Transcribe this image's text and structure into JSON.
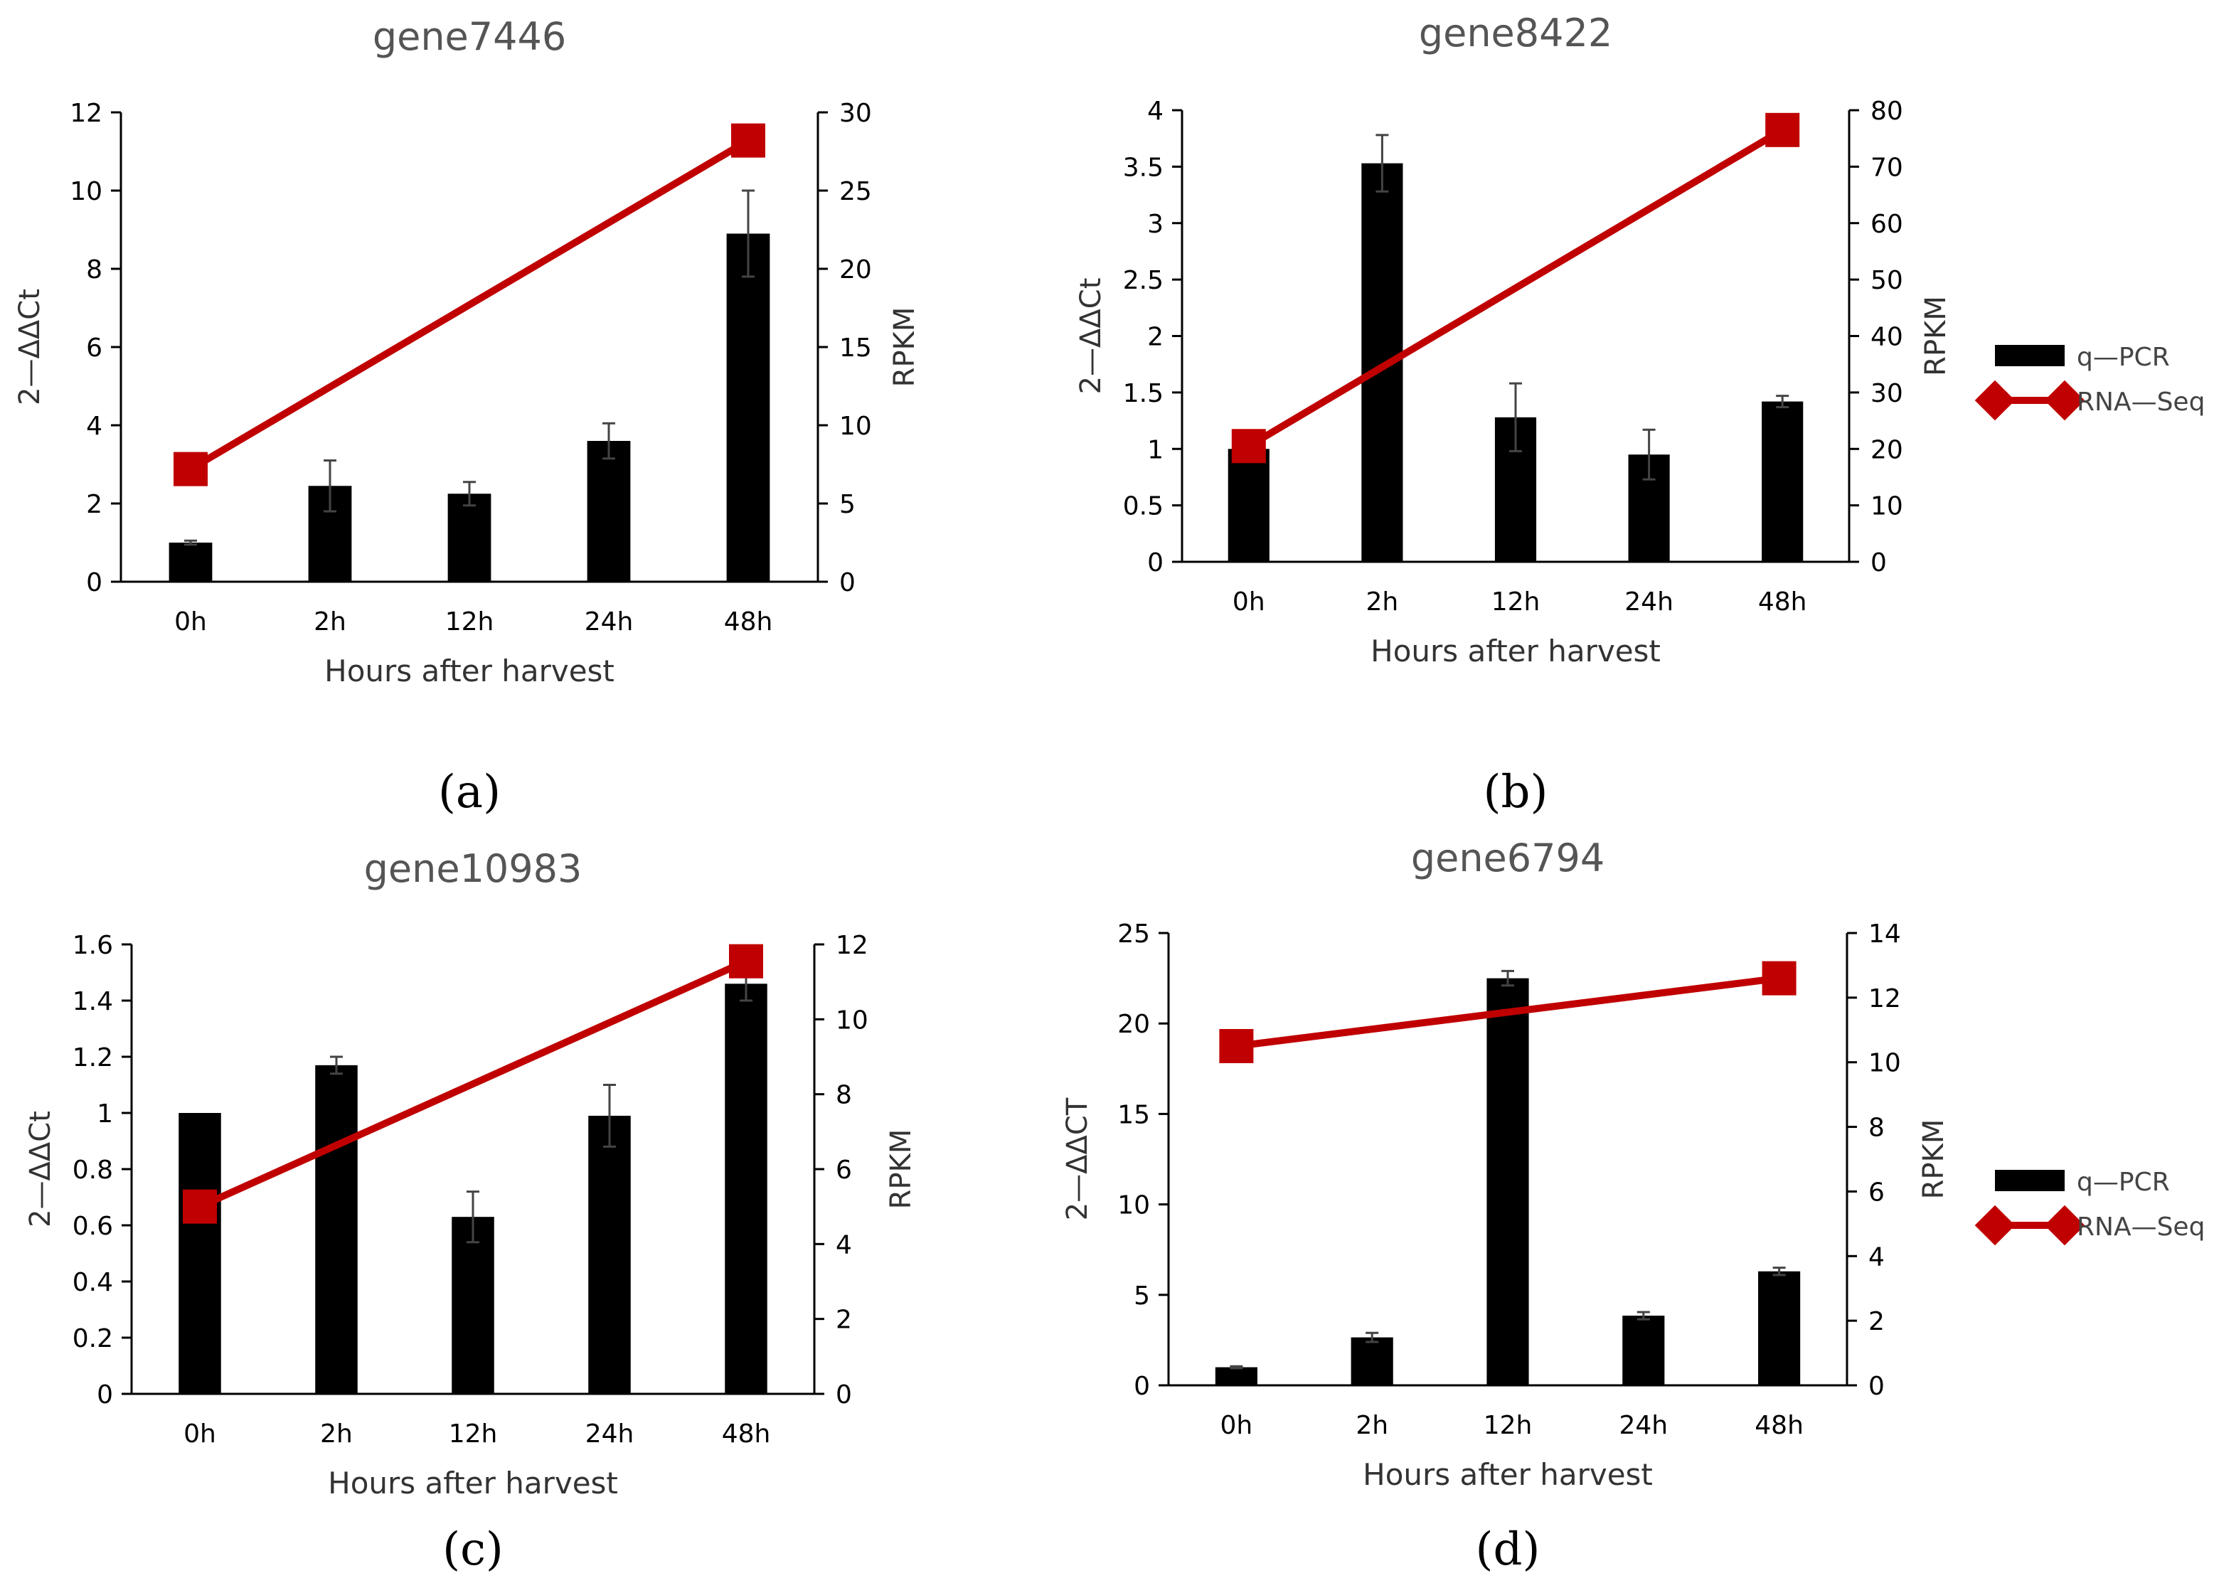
{
  "chart_data": [
    {
      "type": "bar",
      "panel": "a",
      "caption": "(a)",
      "title": "gene7446",
      "categories": [
        "0h",
        "2h",
        "12h",
        "24h",
        "48h"
      ],
      "xlabel": "Hours after harvest",
      "ylabel": "2—ΔΔCt",
      "y2label": "RPKM",
      "ylim": [
        0,
        12
      ],
      "yticks": [
        0,
        2,
        4,
        6,
        8,
        10,
        12
      ],
      "y2lim": [
        0,
        30
      ],
      "y2ticks": [
        0,
        5,
        10,
        15,
        20,
        25,
        30
      ],
      "series": [
        {
          "name": "q—PCR",
          "kind": "bar",
          "axis": "left",
          "color": "#000000",
          "values": [
            1.0,
            2.45,
            2.25,
            3.6,
            8.9
          ],
          "errors": [
            0.05,
            0.65,
            0.3,
            0.45,
            1.1
          ]
        },
        {
          "name": "RNA—Seq",
          "kind": "line",
          "axis": "right",
          "color": "#c00000",
          "points": [
            {
              "category": "0h",
              "value": 7.2
            },
            {
              "category": "48h",
              "value": 28.2
            }
          ]
        }
      ],
      "legend": "none"
    },
    {
      "type": "bar",
      "panel": "b",
      "caption": "(b)",
      "title": "gene8422",
      "categories": [
        "0h",
        "2h",
        "12h",
        "24h",
        "48h"
      ],
      "xlabel": "Hours after harvest",
      "ylabel": "2—ΔΔCt",
      "y2label": "RPKM",
      "ylim": [
        0,
        4
      ],
      "yticks": [
        "0",
        "0.5",
        "1",
        "1.5",
        "2",
        "2.5",
        "3",
        "3.5",
        "4"
      ],
      "y2lim": [
        0,
        80
      ],
      "y2ticks": [
        0,
        10,
        20,
        30,
        40,
        50,
        60,
        70,
        80
      ],
      "series": [
        {
          "name": "q—PCR",
          "kind": "bar",
          "axis": "left",
          "color": "#000000",
          "values": [
            1.0,
            3.53,
            1.28,
            0.95,
            1.42
          ],
          "errors": [
            0.0,
            0.25,
            0.3,
            0.22,
            0.05
          ]
        },
        {
          "name": "RNA—Seq",
          "kind": "line",
          "axis": "right",
          "color": "#c00000",
          "points": [
            {
              "category": "0h",
              "value": 20.5
            },
            {
              "category": "48h",
              "value": 76.5
            }
          ]
        }
      ],
      "legend": "right",
      "legend_labels": [
        "q—PCR",
        "RNA—Seq"
      ]
    },
    {
      "type": "bar",
      "panel": "c",
      "caption": "(c)",
      "title": "gene10983",
      "categories": [
        "0h",
        "2h",
        "12h",
        "24h",
        "48h"
      ],
      "xlabel": "Hours after harvest",
      "ylabel": "2—ΔΔCt",
      "y2label": "RPKM",
      "ylim": [
        0,
        1.6
      ],
      "yticks": [
        "0",
        "0.2",
        "0.4",
        "0.6",
        "0.8",
        "1",
        "1.2",
        "1.4",
        "1.6"
      ],
      "y2lim": [
        0,
        12
      ],
      "y2ticks": [
        0,
        2,
        4,
        6,
        8,
        10,
        12
      ],
      "series": [
        {
          "name": "q—PCR",
          "kind": "bar",
          "axis": "left",
          "color": "#000000",
          "values": [
            1.0,
            1.17,
            0.63,
            0.99,
            1.46
          ],
          "errors": [
            0.0,
            0.03,
            0.09,
            0.11,
            0.06
          ]
        },
        {
          "name": "RNA—Seq",
          "kind": "line",
          "axis": "right",
          "color": "#c00000",
          "points": [
            {
              "category": "0h",
              "value": 5.0
            },
            {
              "category": "48h",
              "value": 11.55
            }
          ]
        }
      ],
      "legend": "none"
    },
    {
      "type": "bar",
      "panel": "d",
      "caption": "(d)",
      "title": "gene6794",
      "categories": [
        "0h",
        "2h",
        "12h",
        "24h",
        "48h"
      ],
      "xlabel": "Hours after harvest",
      "ylabel": "2—ΔΔCT",
      "y2label": "RPKM",
      "ylim": [
        0,
        25
      ],
      "yticks": [
        0,
        5,
        10,
        15,
        20,
        25
      ],
      "y2lim": [
        0,
        14
      ],
      "y2ticks": [
        0,
        2,
        4,
        6,
        8,
        10,
        12,
        14
      ],
      "series": [
        {
          "name": "q—PCR",
          "kind": "bar",
          "axis": "left",
          "color": "#000000",
          "values": [
            1.0,
            2.65,
            22.5,
            3.85,
            6.3
          ],
          "errors": [
            0.05,
            0.25,
            0.4,
            0.2,
            0.2
          ]
        },
        {
          "name": "RNA—Seq",
          "kind": "line",
          "axis": "right",
          "color": "#c00000",
          "points": [
            {
              "category": "0h",
              "value": 10.5
            },
            {
              "category": "48h",
              "value": 12.6
            }
          ]
        }
      ],
      "legend": "right",
      "legend_labels": [
        "q—PCR",
        "RNA—Seq"
      ]
    }
  ]
}
